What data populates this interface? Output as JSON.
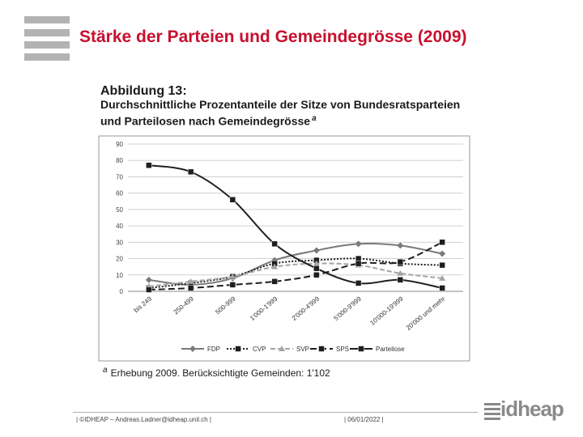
{
  "slide": {
    "title": "Stärke der Parteien und Gemeindegrösse (2009)",
    "footer_left": "| ©IDHEAP – Andreas.Ladner@idheap.unil.ch |",
    "footer_date": "| 06/01/2022 |",
    "brand": "idheap"
  },
  "figure": {
    "label": "Abbildung 13:",
    "caption_line1": "Durchschnittliche Prozentanteile der Sitze von Bundesratsparteien",
    "caption_line2": "und Parteilosen nach Gemeindegrösse",
    "caption_marker": "a",
    "footnote_marker": "a",
    "footnote": "Erhebung 2009. Berücksichtigte Gemeinden: 1'102"
  },
  "colors": {
    "title_red": "#c8102e",
    "gray_bar": "#b3b3b3",
    "grid": "#d0d0d0"
  },
  "chart_data": {
    "type": "line",
    "categories": [
      "bis 249",
      "250-499",
      "500-999",
      "1'000-1'999",
      "2'000-4'999",
      "5'000-9'999",
      "10'000-19'999",
      "20'000 und mehr"
    ],
    "ylim": [
      0,
      90
    ],
    "yticks": [
      0,
      10,
      20,
      30,
      40,
      50,
      60,
      70,
      80,
      90
    ],
    "grid": true,
    "legend_position": "bottom",
    "series": [
      {
        "name": "FDP",
        "color": "#7a7a7a",
        "dash": "",
        "marker": "diamond",
        "values": [
          7,
          4,
          8,
          19,
          25,
          29,
          28,
          23
        ]
      },
      {
        "name": "CVP",
        "color": "#1e1e1e",
        "dash": "2,2",
        "marker": "square",
        "values": [
          2,
          5,
          9,
          17,
          19,
          20,
          17,
          16
        ]
      },
      {
        "name": "SVP",
        "color": "#a5a5a5",
        "dash": "6,3",
        "marker": "triangle",
        "values": [
          3,
          6,
          9,
          15,
          17,
          16,
          11,
          8
        ]
      },
      {
        "name": "SPS",
        "color": "#1e1e1e",
        "dash": "8,4",
        "marker": "square",
        "values": [
          1,
          2,
          4,
          6,
          10,
          17,
          18,
          30
        ]
      },
      {
        "name": "Parteilose",
        "color": "#1e1e1e",
        "dash": "",
        "marker": "square",
        "values": [
          77,
          73,
          56,
          29,
          14,
          5,
          7,
          2
        ]
      }
    ]
  }
}
